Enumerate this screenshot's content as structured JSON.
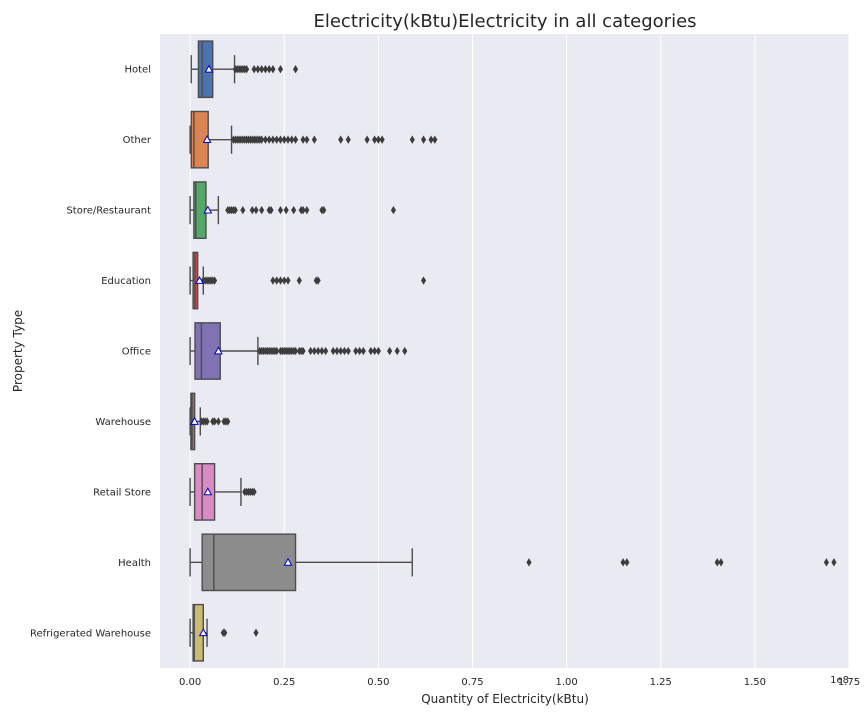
{
  "chart_data": {
    "type": "box",
    "orientation": "horizontal",
    "title": "Electricity(kBtu)Electricity in all categories",
    "xlabel": "Quantity of Electricity(kBtu)",
    "ylabel": "Property Type",
    "x_scale_label": "1e8",
    "xlim": [
      -0.08,
      1.75
    ],
    "xticks": [
      {
        "value": 0.0,
        "label": "0.00"
      },
      {
        "value": 0.25,
        "label": "0.25"
      },
      {
        "value": 0.5,
        "label": "0.50"
      },
      {
        "value": 0.75,
        "label": "0.75"
      },
      {
        "value": 1.0,
        "label": "1.00"
      },
      {
        "value": 1.25,
        "label": "1.25"
      },
      {
        "value": 1.5,
        "label": "1.50"
      },
      {
        "value": 1.75,
        "label": "1.75"
      }
    ],
    "grid": true,
    "mean_marker": "triangle",
    "categories": [
      {
        "name": "Hotel",
        "color": "#4c72b0",
        "whislo": 0.003,
        "q1": 0.022,
        "median": 0.032,
        "q3": 0.06,
        "whishi": 0.118,
        "mean": 0.05,
        "fliers": [
          0.12,
          0.125,
          0.13,
          0.135,
          0.14,
          0.145,
          0.15,
          0.17,
          0.18,
          0.19,
          0.2,
          0.21,
          0.22,
          0.24,
          0.28
        ]
      },
      {
        "name": "Other",
        "color": "#dd8452",
        "whislo": 0.0,
        "q1": 0.003,
        "median": 0.01,
        "q3": 0.048,
        "whishi": 0.11,
        "mean": 0.045,
        "fliers": [
          0.115,
          0.12,
          0.125,
          0.13,
          0.135,
          0.14,
          0.145,
          0.15,
          0.155,
          0.16,
          0.165,
          0.17,
          0.175,
          0.18,
          0.185,
          0.19,
          0.2,
          0.21,
          0.22,
          0.23,
          0.24,
          0.25,
          0.26,
          0.27,
          0.28,
          0.3,
          0.31,
          0.33,
          0.4,
          0.42,
          0.47,
          0.49,
          0.5,
          0.51,
          0.59,
          0.62,
          0.64,
          0.65
        ]
      },
      {
        "name": "Store/Restaurant",
        "color": "#55a868",
        "whislo": 0.0,
        "q1": 0.01,
        "median": 0.015,
        "q3": 0.042,
        "whishi": 0.075,
        "mean": 0.047,
        "fliers": [
          0.1,
          0.105,
          0.11,
          0.115,
          0.12,
          0.14,
          0.165,
          0.175,
          0.19,
          0.21,
          0.215,
          0.24,
          0.255,
          0.275,
          0.295,
          0.3,
          0.31,
          0.35,
          0.355,
          0.54
        ]
      },
      {
        "name": "Education",
        "color": "#c44e52",
        "whislo": 0.0,
        "q1": 0.008,
        "median": 0.013,
        "q3": 0.02,
        "whishi": 0.035,
        "mean": 0.025,
        "fliers": [
          0.035,
          0.04,
          0.045,
          0.05,
          0.055,
          0.06,
          0.065,
          0.22,
          0.23,
          0.24,
          0.25,
          0.26,
          0.29,
          0.335,
          0.34,
          0.62
        ]
      },
      {
        "name": "Office",
        "color": "#8172b3",
        "whislo": 0.0,
        "q1": 0.013,
        "median": 0.03,
        "q3": 0.08,
        "whishi": 0.18,
        "mean": 0.075,
        "fliers": [
          0.185,
          0.19,
          0.195,
          0.2,
          0.205,
          0.21,
          0.215,
          0.22,
          0.225,
          0.23,
          0.24,
          0.245,
          0.25,
          0.255,
          0.26,
          0.265,
          0.27,
          0.275,
          0.28,
          0.29,
          0.295,
          0.3,
          0.32,
          0.33,
          0.34,
          0.35,
          0.36,
          0.38,
          0.39,
          0.4,
          0.41,
          0.42,
          0.44,
          0.45,
          0.46,
          0.48,
          0.49,
          0.5,
          0.53,
          0.55,
          0.57
        ]
      },
      {
        "name": "Warehouse",
        "color": "#937860",
        "whislo": 0.0,
        "q1": 0.002,
        "median": 0.005,
        "q3": 0.012,
        "whishi": 0.027,
        "mean": 0.012,
        "fliers": [
          0.03,
          0.035,
          0.04,
          0.045,
          0.06,
          0.065,
          0.075,
          0.09,
          0.095,
          0.1
        ]
      },
      {
        "name": "Retail Store",
        "color": "#da8bc3",
        "whislo": 0.0,
        "q1": 0.012,
        "median": 0.032,
        "q3": 0.065,
        "whishi": 0.135,
        "mean": 0.047,
        "fliers": [
          0.145,
          0.15,
          0.155,
          0.16,
          0.165,
          0.17
        ]
      },
      {
        "name": "Health",
        "color": "#8c8c8c",
        "whislo": 0.0,
        "q1": 0.032,
        "median": 0.063,
        "q3": 0.28,
        "whishi": 0.59,
        "mean": 0.26,
        "fliers": [
          0.9,
          1.15,
          1.16,
          1.4,
          1.41,
          1.69,
          1.71
        ]
      },
      {
        "name": "Refrigerated Warehouse",
        "color": "#ccb974",
        "whislo": 0.0,
        "q1": 0.008,
        "median": 0.011,
        "q3": 0.035,
        "whishi": 0.045,
        "mean": 0.035,
        "fliers": [
          0.088,
          0.092,
          0.175
        ]
      }
    ]
  }
}
